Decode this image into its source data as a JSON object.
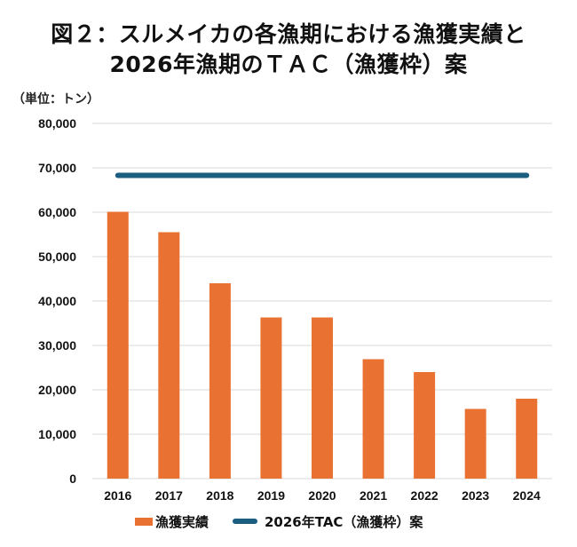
{
  "chart_data": {
    "type": "bar",
    "title_line1": "図２：スルメイカの各漁期における漁獲実績と",
    "title_line2": "2026年漁期のＴＡＣ（漁獲枠）案",
    "unit_label": "（単位：トン）",
    "xlabel": "",
    "ylabel": "",
    "categories": [
      "2016",
      "2017",
      "2018",
      "2019",
      "2020",
      "2021",
      "2022",
      "2023",
      "2024"
    ],
    "ylim": [
      0,
      80000
    ],
    "yticks": [
      0,
      10000,
      20000,
      30000,
      40000,
      50000,
      60000,
      70000,
      80000
    ],
    "ytick_labels": [
      "0",
      "10,000",
      "20,000",
      "30,000",
      "40,000",
      "50,000",
      "60,000",
      "70,000",
      "80,000"
    ],
    "grid": true,
    "series": [
      {
        "name": "漁獲実績",
        "type": "bar",
        "color": "#e97132",
        "values": [
          60100,
          55500,
          44000,
          36300,
          36300,
          26900,
          24000,
          15700,
          18000
        ]
      },
      {
        "name": "2026年TAC（漁獲枠）案",
        "type": "line",
        "color": "#1b5e80",
        "values": [
          68300,
          68300,
          68300,
          68300,
          68300,
          68300,
          68300,
          68300,
          68300
        ]
      }
    ],
    "legend": {
      "position": "bottom",
      "entries": [
        "漁獲実績",
        "2026年TAC（漁獲枠）案"
      ]
    }
  }
}
